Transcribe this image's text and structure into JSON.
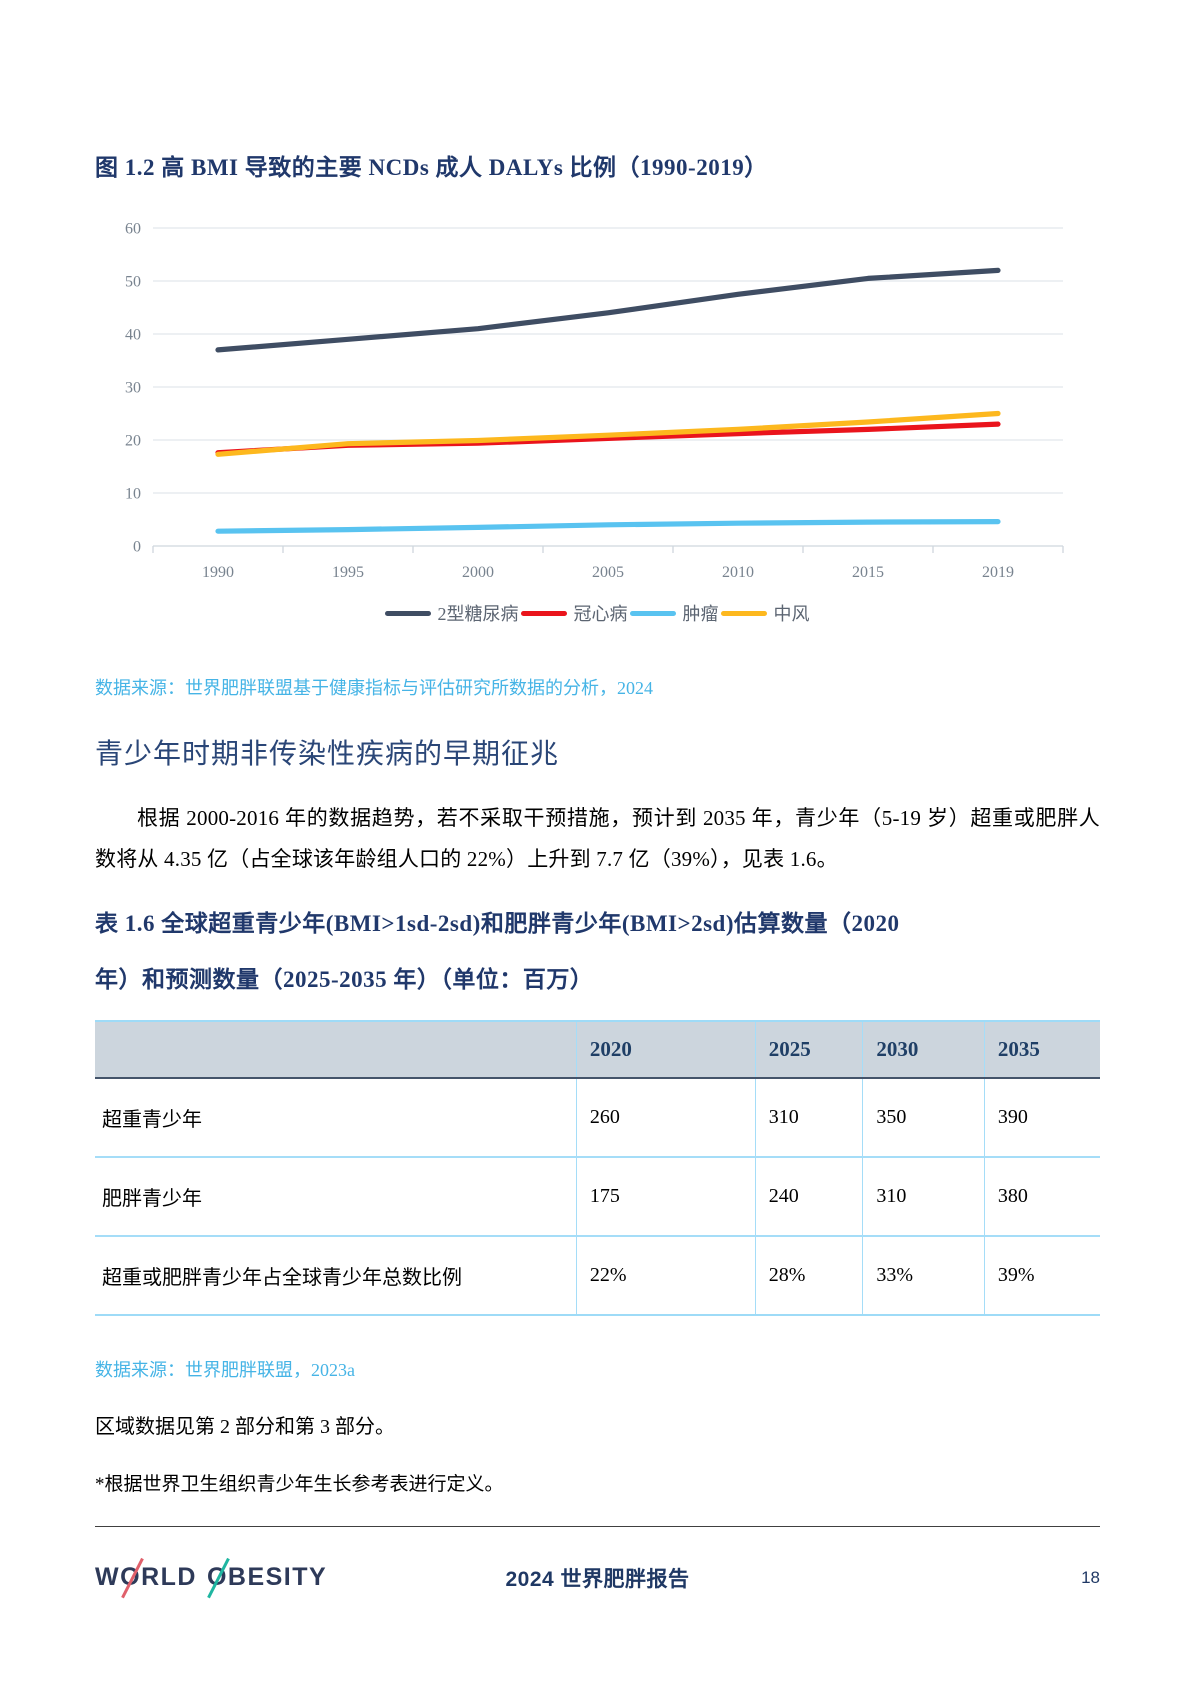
{
  "figure": {
    "title": "图 1.2 高 BMI 导致的主要 NCDs 成人 DALYs 比例（1990-2019）",
    "source": "数据来源：世界肥胖联盟基于健康指标与评估研究所数据的分析，2024"
  },
  "chart_data": {
    "type": "line",
    "x": [
      1990,
      1995,
      2000,
      2005,
      2010,
      2015,
      2019
    ],
    "x_tick_labels": [
      "1990",
      "1995",
      "2000",
      "2005",
      "2010",
      "2015",
      "2019"
    ],
    "y_ticks": [
      0,
      10,
      20,
      30,
      40,
      50,
      60
    ],
    "ylim": [
      0,
      60
    ],
    "grid": true,
    "legend_position": "bottom",
    "title": "",
    "xlabel": "",
    "ylabel": "",
    "series": [
      {
        "name": "2型糖尿病",
        "color": "#3f4d63",
        "values": [
          37.0,
          39.0,
          41.0,
          44.0,
          47.5,
          50.5,
          52.0
        ]
      },
      {
        "name": "冠心病",
        "color": "#ea141c",
        "values": [
          17.6,
          19.0,
          19.4,
          20.3,
          21.2,
          22.0,
          23.0
        ]
      },
      {
        "name": "肿瘤",
        "color": "#59c3f0",
        "values": [
          2.8,
          3.1,
          3.5,
          4.0,
          4.3,
          4.5,
          4.6
        ]
      },
      {
        "name": "中风",
        "color": "#fdb81e",
        "values": [
          17.3,
          19.3,
          19.9,
          20.9,
          22.0,
          23.4,
          25.0
        ]
      }
    ]
  },
  "section": {
    "heading": "青少年时期非传染性疾病的早期征兆",
    "paragraph": "根据 2000-2016 年的数据趋势，若不采取干预措施，预计到 2035 年，青少年（5-19 岁）超重或肥胖人数将从 4.35 亿（占全球该年龄组人口的 22%）上升到 7.7 亿（39%），见表 1.6。"
  },
  "table": {
    "title_line1": "表 1.6 全球超重青少年(BMI>1sd-2sd)和肥胖青少年(BMI>2sd)估算数量（2020",
    "title_line2": "年）和预测数量（2025-2035 年）（单位：百万）",
    "columns": [
      "",
      "2020",
      "2025",
      "2030",
      "2035"
    ],
    "rows": [
      {
        "label": "超重青少年",
        "values": [
          "260",
          "310",
          "350",
          "390"
        ]
      },
      {
        "label": "肥胖青少年",
        "values": [
          "175",
          "240",
          "310",
          "380"
        ]
      },
      {
        "label": "超重或肥胖青少年占全球青少年总数比例",
        "values": [
          "22%",
          "28%",
          "33%",
          "39%"
        ]
      }
    ],
    "source": "数据来源：世界肥胖联盟，2023a",
    "regions_note": "区域数据见第 2 部分和第 3 部分。",
    "footnote": "*根据世界卫生组织青少年生长参考表进行定义。"
  },
  "footer": {
    "logo": {
      "w1": "W",
      "o1": "O",
      "w2": "RLD",
      "o2": "O",
      "w3": "BESITY"
    },
    "report_title": "2024 世界肥胖报告",
    "page_number": "18"
  },
  "colors": {
    "title_navy": "#20386b",
    "source_blue": "#46b4e6",
    "table_header_bg": "#ccd5dd",
    "table_border_blue": "#9edbf7",
    "logo_navy": "#2e3a59",
    "logo_slash_red": "#e0606b",
    "logo_slash_teal": "#1fb6a1"
  }
}
